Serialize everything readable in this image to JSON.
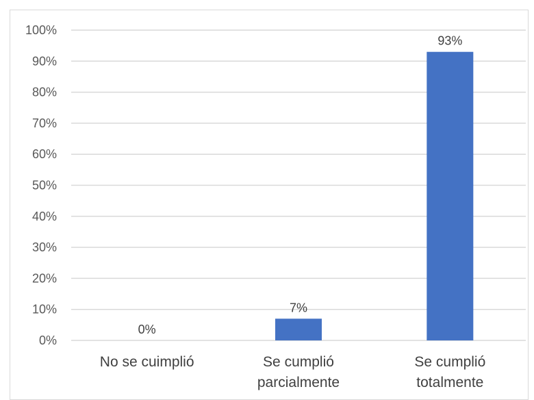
{
  "chart_data": {
    "type": "bar",
    "categories": [
      [
        "No se cuimplió"
      ],
      [
        "Se cumplió",
        "parcialmente"
      ],
      [
        "Se cumplió",
        "totalmente"
      ]
    ],
    "values": [
      0,
      7,
      93
    ],
    "data_labels": [
      "0%",
      "7%",
      "93%"
    ],
    "yticks": [
      "0%",
      "10%",
      "20%",
      "30%",
      "40%",
      "50%",
      "60%",
      "70%",
      "80%",
      "90%",
      "100%"
    ],
    "ylim": [
      0,
      100
    ],
    "grid": true,
    "bar_color": "#4472c4",
    "gridline_color": "#d9d9d9",
    "title": "",
    "xlabel": "",
    "ylabel": ""
  }
}
